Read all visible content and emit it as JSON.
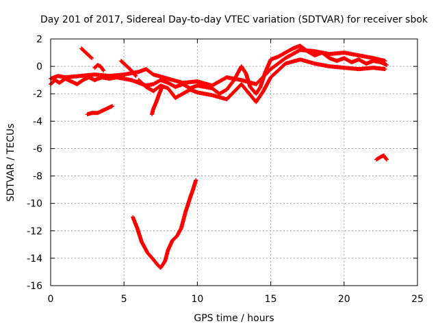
{
  "chart_data": {
    "type": "scatter",
    "title": "Day 201 of 2017, Sidereal Day-to-day VTEC variation (SDTVAR) for receiver sbok",
    "xlabel": "GPS time / hours",
    "ylabel": "SDTVAR / TECUs",
    "xlim": [
      0,
      25
    ],
    "ylim": [
      -16,
      2
    ],
    "xticks": [
      0,
      5,
      10,
      15,
      20,
      25
    ],
    "yticks": [
      -16,
      -14,
      -12,
      -10,
      -8,
      -6,
      -4,
      -2,
      0,
      2
    ],
    "xtick_labels": [
      "0",
      "5",
      "10",
      "15",
      "20",
      "25"
    ],
    "ytick_labels": [
      "-16",
      "-14",
      "-12",
      "-10",
      "-8",
      "-6",
      "-4",
      "-2",
      "0",
      "2"
    ],
    "grid": true,
    "marker": "+",
    "color": "#ff0000",
    "series": [
      {
        "name": "track-main",
        "points": [
          [
            0,
            -1.3
          ],
          [
            0.3,
            -1.0
          ],
          [
            0.6,
            -1.2
          ],
          [
            1.0,
            -0.9
          ],
          [
            1.4,
            -1.1
          ],
          [
            1.8,
            -1.3
          ],
          [
            2.2,
            -1.0
          ],
          [
            2.6,
            -0.8
          ],
          [
            3.0,
            -1.0
          ],
          [
            3.5,
            -0.8
          ],
          [
            4.0,
            -0.9
          ],
          [
            4.5,
            -0.8
          ],
          [
            5.0,
            -0.9
          ],
          [
            5.5,
            -1.0
          ],
          [
            6.0,
            -1.2
          ],
          [
            6.5,
            -1.4
          ],
          [
            7.0,
            -1.3
          ],
          [
            7.5,
            -1.0
          ],
          [
            8.0,
            -1.2
          ],
          [
            8.5,
            -1.5
          ],
          [
            9.0,
            -1.3
          ],
          [
            9.5,
            -1.6
          ],
          [
            10.0,
            -1.4
          ],
          [
            10.5,
            -1.5
          ],
          [
            11.0,
            -1.6
          ],
          [
            11.5,
            -2.0
          ],
          [
            12.0,
            -1.7
          ],
          [
            12.5,
            -1.0
          ],
          [
            13.0,
            0.0
          ],
          [
            13.3,
            -0.5
          ],
          [
            13.6,
            -1.5
          ],
          [
            14.0,
            -2.0
          ],
          [
            14.3,
            -1.5
          ],
          [
            14.6,
            -0.5
          ],
          [
            15.0,
            0.5
          ],
          [
            15.5,
            0.7
          ],
          [
            16.0,
            1.0
          ],
          [
            16.5,
            1.3
          ],
          [
            17.0,
            1.5
          ],
          [
            17.5,
            1.1
          ],
          [
            18.0,
            0.8
          ],
          [
            18.5,
            1.0
          ],
          [
            19.0,
            0.6
          ],
          [
            19.5,
            0.4
          ],
          [
            20.0,
            0.6
          ],
          [
            20.5,
            0.3
          ],
          [
            21.0,
            0.5
          ],
          [
            21.5,
            0.2
          ],
          [
            22.0,
            0.4
          ],
          [
            22.5,
            0.3
          ],
          [
            22.9,
            0.1
          ]
        ]
      },
      {
        "name": "track-upper",
        "points": [
          [
            0,
            -0.9
          ],
          [
            0.5,
            -0.7
          ],
          [
            1.0,
            -0.8
          ],
          [
            2.0,
            -0.7
          ],
          [
            3.0,
            -0.6
          ],
          [
            4.0,
            -0.7
          ],
          [
            5.0,
            -0.6
          ],
          [
            6.0,
            -0.4
          ],
          [
            6.5,
            -0.2
          ],
          [
            7.0,
            -0.6
          ],
          [
            8.0,
            -0.9
          ],
          [
            9.0,
            -1.2
          ],
          [
            10.0,
            -1.1
          ],
          [
            11.0,
            -1.4
          ],
          [
            12.0,
            -0.8
          ],
          [
            13.0,
            -1.0
          ],
          [
            14.0,
            -1.3
          ],
          [
            15.0,
            -0.2
          ],
          [
            16.0,
            0.6
          ],
          [
            17.0,
            1.2
          ],
          [
            18.0,
            1.1
          ],
          [
            19.0,
            0.9
          ],
          [
            20.0,
            1.0
          ],
          [
            21.0,
            0.8
          ],
          [
            22.0,
            0.6
          ],
          [
            22.8,
            0.4
          ]
        ]
      },
      {
        "name": "track-lower",
        "points": [
          [
            6.0,
            -1.0
          ],
          [
            6.5,
            -1.5
          ],
          [
            7.0,
            -1.8
          ],
          [
            7.5,
            -1.4
          ],
          [
            8.0,
            -1.6
          ],
          [
            8.5,
            -2.3
          ],
          [
            9.0,
            -2.0
          ],
          [
            9.5,
            -1.7
          ],
          [
            10.0,
            -1.9
          ],
          [
            11.0,
            -2.1
          ],
          [
            12.0,
            -2.4
          ],
          [
            13.0,
            -1.3
          ],
          [
            14.0,
            -2.6
          ],
          [
            14.5,
            -1.8
          ],
          [
            15.0,
            -0.8
          ],
          [
            16.0,
            0.2
          ],
          [
            17.0,
            0.5
          ],
          [
            18.0,
            0.2
          ],
          [
            19.0,
            0.0
          ],
          [
            20.0,
            -0.1
          ],
          [
            21.0,
            -0.2
          ],
          [
            22.0,
            -0.1
          ],
          [
            22.8,
            -0.2
          ]
        ]
      },
      {
        "name": "seg-a",
        "points": [
          [
            2.1,
            1.3
          ],
          [
            2.4,
            1.0
          ],
          [
            2.8,
            0.6
          ]
        ]
      },
      {
        "name": "seg-b",
        "points": [
          [
            3.0,
            -0.1
          ],
          [
            3.2,
            0.1
          ],
          [
            3.4,
            0.0
          ],
          [
            3.6,
            -0.3
          ]
        ]
      },
      {
        "name": "seg-c",
        "points": [
          [
            4.8,
            0.4
          ],
          [
            5.2,
            0.0
          ],
          [
            5.5,
            -0.3
          ],
          [
            5.8,
            -0.7
          ]
        ]
      },
      {
        "name": "seg-d",
        "points": [
          [
            7.6,
            -1.5
          ],
          [
            7.4,
            -2.0
          ],
          [
            7.2,
            -2.6
          ],
          [
            7.0,
            -3.1
          ],
          [
            6.9,
            -3.5
          ]
        ]
      },
      {
        "name": "seg-e",
        "points": [
          [
            2.5,
            -3.5
          ],
          [
            2.8,
            -3.4
          ],
          [
            3.2,
            -3.4
          ],
          [
            3.6,
            -3.2
          ],
          [
            4.0,
            -3.0
          ],
          [
            4.2,
            -2.9
          ]
        ]
      },
      {
        "name": "seg-f",
        "points": [
          [
            5.6,
            -11.0
          ],
          [
            5.9,
            -11.8
          ],
          [
            6.2,
            -12.8
          ],
          [
            6.6,
            -13.6
          ],
          [
            7.0,
            -14.1
          ],
          [
            7.3,
            -14.5
          ],
          [
            7.5,
            -14.7
          ],
          [
            7.8,
            -14.2
          ],
          [
            8.0,
            -13.4
          ],
          [
            8.3,
            -12.7
          ],
          [
            8.6,
            -12.4
          ],
          [
            8.9,
            -11.8
          ],
          [
            9.2,
            -10.6
          ],
          [
            9.5,
            -9.6
          ],
          [
            9.7,
            -9.0
          ],
          [
            9.9,
            -8.3
          ]
        ]
      },
      {
        "name": "seg-g",
        "points": [
          [
            22.2,
            -6.8
          ],
          [
            22.5,
            -6.6
          ],
          [
            22.7,
            -6.5
          ],
          [
            22.9,
            -6.8
          ]
        ]
      }
    ]
  }
}
